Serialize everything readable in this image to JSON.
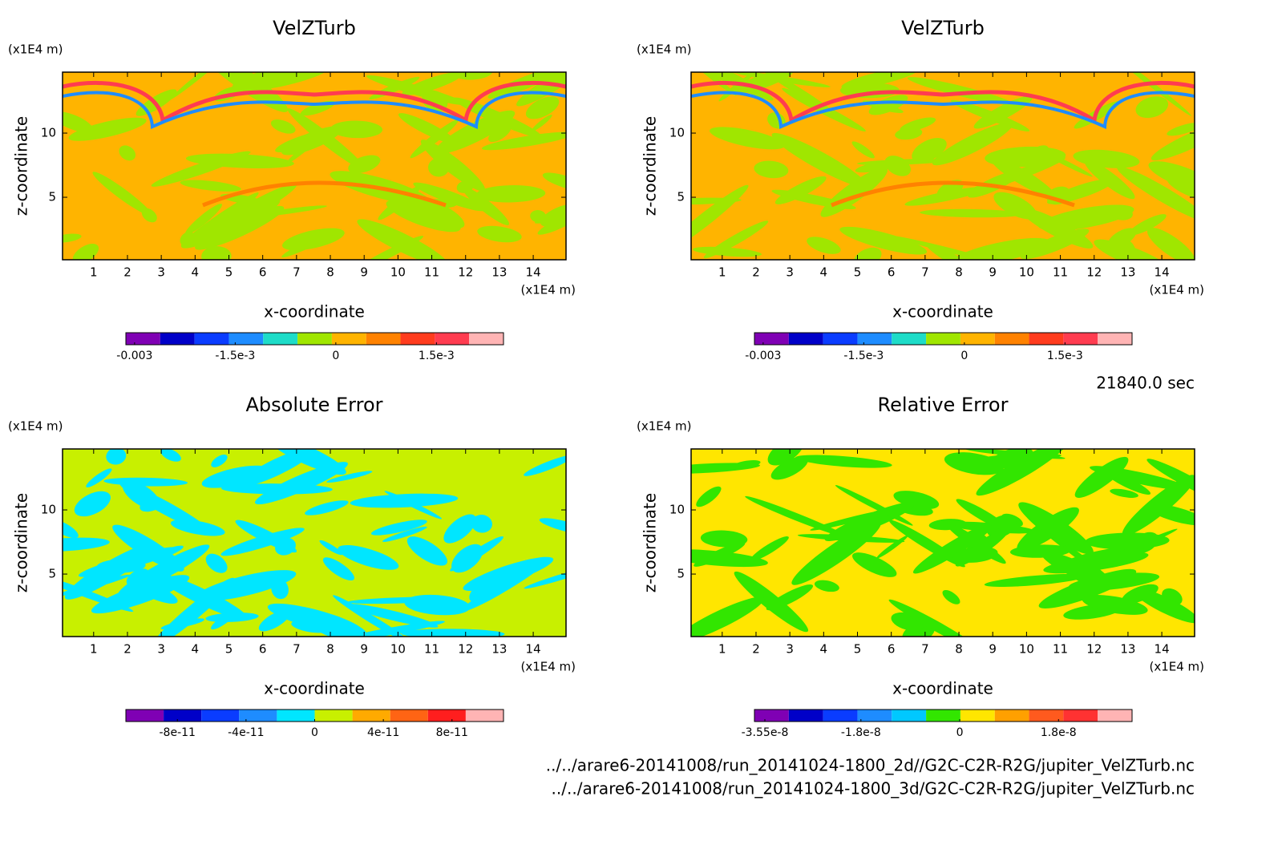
{
  "chart_data": [
    {
      "type": "contour",
      "title": "VelZTurb",
      "x_label": "x-coordinate",
      "y_label": "z-coordinate",
      "x_unit": "(x1E4 m)",
      "y_unit": "(x1E4 m)",
      "xlim": [
        0.08,
        14.97
      ],
      "xticks": [
        1,
        2,
        3,
        4,
        5,
        6,
        7,
        8,
        9,
        10,
        11,
        12,
        13,
        14
      ],
      "ylim": [
        0.13,
        14.75
      ],
      "yticks": [
        5,
        10
      ],
      "colorbar": {
        "clim": [
          -0.00313,
          0.0025
        ],
        "colors": [
          "#7f00b4",
          "#0000c8",
          "#0a3cff",
          "#1e8cff",
          "#1edcc8",
          "#a0e600",
          "#ffb400",
          "#ff8200",
          "#ff3c1e",
          "#ff3c50",
          "#ffb4b4"
        ],
        "ticks": [
          -0.003,
          {
            "value": -0.0015,
            "label": "-1.5e-3"
          },
          0,
          {
            "value": 0.0015,
            "label": "1.5e-3"
          }
        ]
      }
    },
    {
      "type": "contour",
      "title": "VelZTurb",
      "x_label": "x-coordinate",
      "y_label": "z-coordinate",
      "x_unit": "(x1E4 m)",
      "y_unit": "(x1E4 m)",
      "xlim": [
        0.08,
        14.97
      ],
      "xticks": [
        1,
        2,
        3,
        4,
        5,
        6,
        7,
        8,
        9,
        10,
        11,
        12,
        13,
        14
      ],
      "ylim": [
        0.13,
        14.75
      ],
      "yticks": [
        5,
        10
      ],
      "colorbar": {
        "clim": [
          -0.00313,
          0.0025
        ],
        "colors": [
          "#7f00b4",
          "#0000c8",
          "#0a3cff",
          "#1e8cff",
          "#1edcc8",
          "#a0e600",
          "#ffb400",
          "#ff8200",
          "#ff3c1e",
          "#ff3c50",
          "#ffb4b4"
        ],
        "ticks": [
          -0.003,
          {
            "value": -0.0015,
            "label": "-1.5e-3"
          },
          0,
          {
            "value": 0.0015,
            "label": "1.5e-3"
          }
        ]
      }
    },
    {
      "type": "contour",
      "title": "Absolute Error",
      "x_label": "x-coordinate",
      "y_label": "z-coordinate",
      "x_unit": "(x1E4 m)",
      "y_unit": "(x1E4 m)",
      "xlim": [
        0.08,
        14.97
      ],
      "xticks": [
        1,
        2,
        3,
        4,
        5,
        6,
        7,
        8,
        9,
        10,
        11,
        12,
        13,
        14
      ],
      "ylim": [
        0.13,
        14.75
      ],
      "yticks": [
        5,
        10
      ],
      "colorbar": {
        "clim": [
          -1.1e-10,
          1.1e-10
        ],
        "colors": [
          "#7f00b4",
          "#0000c8",
          "#0a3cff",
          "#1e8cff",
          "#00e6ff",
          "#c8f000",
          "#ffaa00",
          "#ff6414",
          "#ff1e1e",
          "#ffb4b4"
        ],
        "ticks": [
          -8e-11,
          -4e-11,
          0,
          4e-11,
          8e-11
        ]
      }
    },
    {
      "type": "contour",
      "title": "Relative Error",
      "x_label": "x-coordinate",
      "y_label": "z-coordinate",
      "x_unit": "(x1E4 m)",
      "y_unit": "(x1E4 m)",
      "xlim": [
        0.08,
        14.97
      ],
      "xticks": [
        1,
        2,
        3,
        4,
        5,
        6,
        7,
        8,
        9,
        10,
        11,
        12,
        13,
        14
      ],
      "ylim": [
        0.13,
        14.75
      ],
      "yticks": [
        5,
        10
      ],
      "colorbar": {
        "clim": [
          -3.74e-08,
          3.14e-08
        ],
        "colors": [
          "#7f00b4",
          "#0000c8",
          "#0a3cff",
          "#1e8cff",
          "#00c8ff",
          "#32e600",
          "#ffe600",
          "#ffa000",
          "#ff5a1e",
          "#ff3232",
          "#ffb4b4"
        ],
        "ticks": [
          -3.55e-08,
          -1.8e-08,
          0,
          1.8e-08
        ]
      }
    }
  ],
  "annotations": {
    "time": "21840.0 sec",
    "files": [
      "../../arare6-20141008/run_20141024-1800_2d//G2C-C2R-R2G/jupiter_VelZTurb.nc",
      "../../arare6-20141008/run_20141024-1800_3d/G2C-C2R-R2G/jupiter_VelZTurb.nc"
    ]
  }
}
